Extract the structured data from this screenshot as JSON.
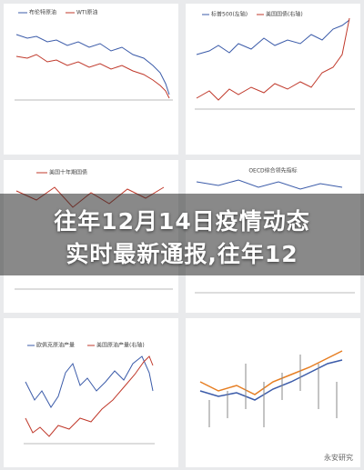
{
  "overlay": {
    "title_lines": [
      "往年12月14日疫情动态",
      "实时最新通报,往年12"
    ]
  },
  "panels": [
    {
      "legend": [
        "布伦特原油",
        "WTI原油"
      ]
    },
    {
      "legend": [
        "标普500(左轴)",
        "美国国债(右轴)"
      ]
    },
    {
      "legend": [
        "美国十年期国债"
      ]
    },
    {
      "legend": [
        "OECD综合领先指标"
      ]
    },
    {
      "legend": [
        "欧佩克原油产量",
        "美国原油产量(右轴)"
      ]
    },
    {
      "legend": []
    }
  ],
  "watermark": "永安研究"
}
